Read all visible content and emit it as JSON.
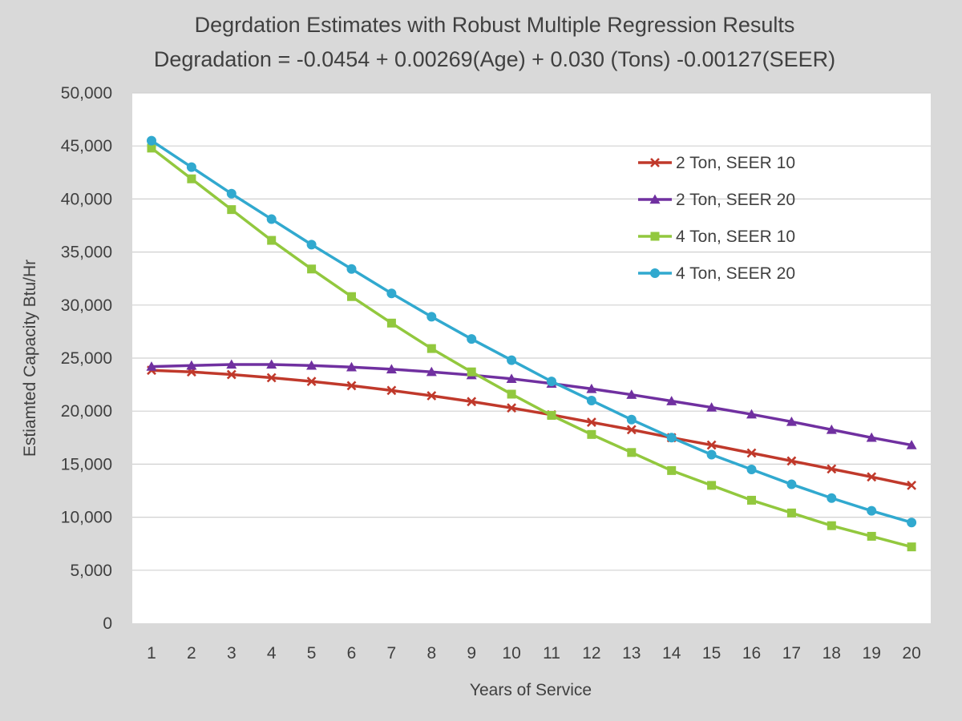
{
  "chart_data": {
    "type": "line",
    "title": "Degrdation Estimates with Robust Multiple Regression Results",
    "subtitle": "Degradation = -0.0454 + 0.00269(Age) + 0.030 (Tons)  -0.00127(SEER)",
    "xlabel": "Years of Service",
    "ylabel": "Estiamted Capacity Btu/Hr",
    "ylim": [
      0,
      50000
    ],
    "y_ticks": [
      "0",
      "5,000",
      "10,000",
      "15,000",
      "20,000",
      "25,000",
      "30,000",
      "35,000",
      "40,000",
      "45,000",
      "50,000"
    ],
    "y_tick_values": [
      0,
      5000,
      10000,
      15000,
      20000,
      25000,
      30000,
      35000,
      40000,
      45000,
      50000
    ],
    "categories": [
      "1",
      "2",
      "3",
      "4",
      "5",
      "6",
      "7",
      "8",
      "9",
      "10",
      "11",
      "12",
      "13",
      "14",
      "15",
      "16",
      "17",
      "18",
      "19",
      "20"
    ],
    "grid": "horizontal",
    "legend_position": "top-right",
    "series": [
      {
        "name": "2 Ton, SEER 10",
        "color": "#c0392b",
        "marker": "x",
        "values": [
          23850,
          23700,
          23450,
          23150,
          22800,
          22400,
          21950,
          21450,
          20900,
          20300,
          19650,
          18950,
          18250,
          17500,
          16800,
          16050,
          15300,
          14550,
          13800,
          13000
        ]
      },
      {
        "name": "2 Ton, SEER 20",
        "color": "#7030a0",
        "marker": "triangle",
        "values": [
          24200,
          24300,
          24400,
          24400,
          24300,
          24150,
          23950,
          23700,
          23400,
          23050,
          22600,
          22100,
          21550,
          20950,
          20350,
          19700,
          19000,
          18250,
          17500,
          16800
        ]
      },
      {
        "name": "4 Ton, SEER 10",
        "color": "#92c83e",
        "marker": "square",
        "values": [
          44800,
          41900,
          39000,
          36100,
          33400,
          30800,
          28300,
          25900,
          23700,
          21600,
          19600,
          17800,
          16100,
          14400,
          13000,
          11600,
          10400,
          9200,
          8200,
          7200
        ]
      },
      {
        "name": "4 Ton, SEER 20",
        "color": "#31a9cf",
        "marker": "circle",
        "values": [
          45500,
          43000,
          40500,
          38100,
          35700,
          33400,
          31100,
          28900,
          26800,
          24800,
          22800,
          21000,
          19200,
          17500,
          15900,
          14500,
          13100,
          11800,
          10600,
          9500
        ]
      }
    ]
  }
}
